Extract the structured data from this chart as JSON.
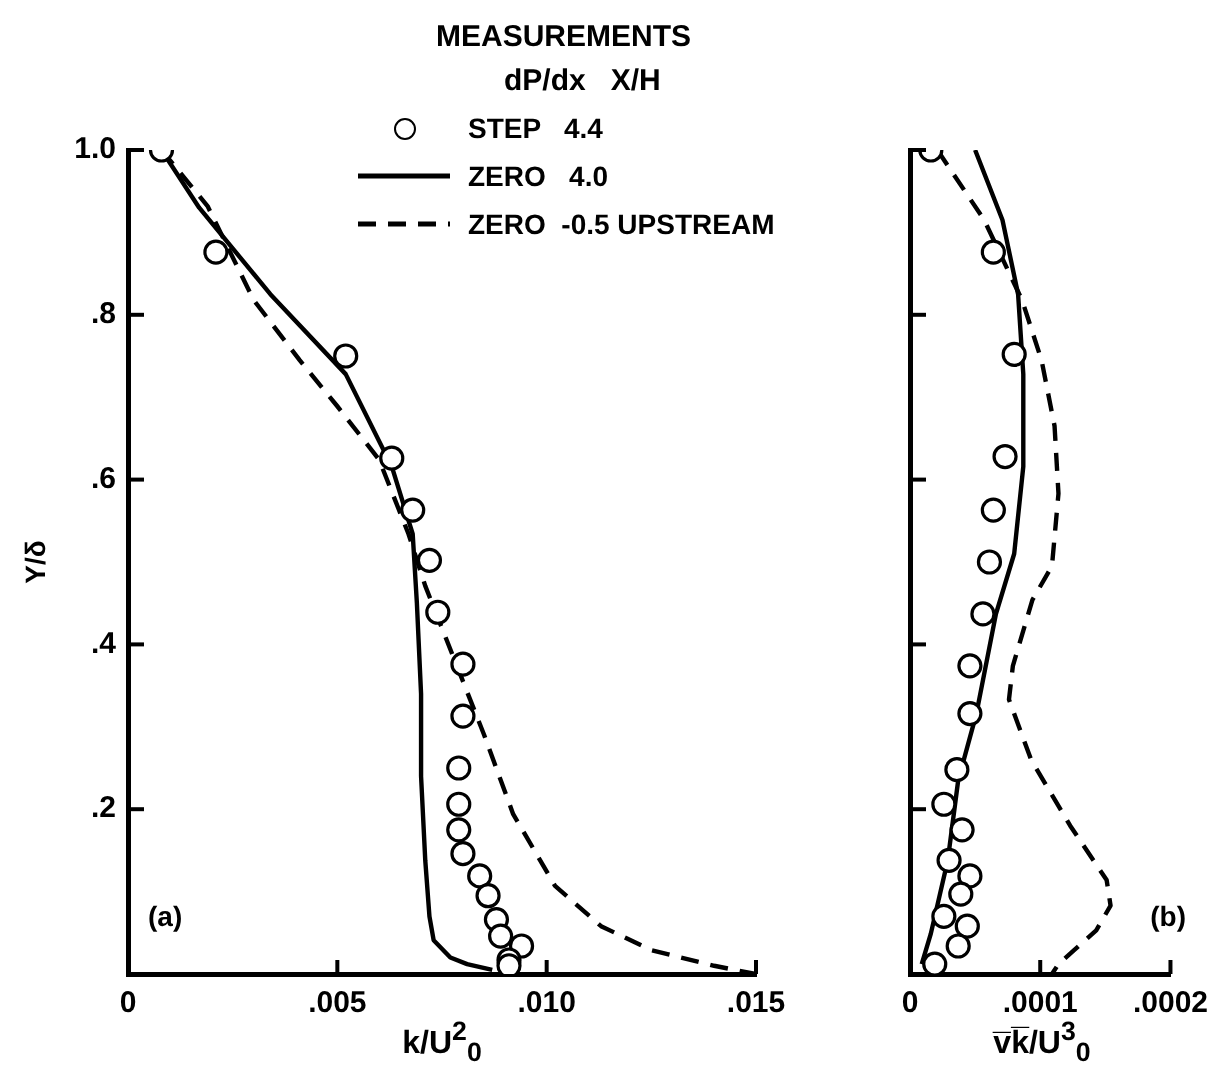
{
  "chart_data": [
    {
      "type": "line",
      "ylabel": "Y/δ",
      "xlabel": "k/U$^{2}$$_{0}$",
      "legend_title": "MEASUREMENTS\ndP/dx   X/H",
      "legend": "top right",
      "annotations": [
        "(a)"
      ],
      "xlim": [
        0,
        0.015
      ],
      "ylim": [
        0,
        1.0
      ],
      "xticks": [
        0,
        {
          "value": 0.005,
          "label": ".005"
        },
        {
          "value": 0.01,
          "label": ".010"
        },
        {
          "value": 0.015,
          "label": ".015"
        }
      ],
      "yticks": [
        {
          "value": 0.2,
          "label": ".2"
        },
        {
          "value": 0.4,
          "label": ".4"
        },
        {
          "value": 0.6,
          "label": ".6"
        },
        {
          "value": 0.8,
          "label": ".8"
        },
        {
          "value": 1.0,
          "label": "1.0"
        }
      ],
      "grid": false,
      "series": [
        {
          "name": "STEP   4.4",
          "type": "scatter",
          "marker": "circle",
          "color": "#000000",
          "x": [
            0.0008,
            0.0021,
            0.0052,
            0.0063,
            0.0068,
            0.0072,
            0.0074,
            0.008,
            0.008,
            0.0079,
            0.0079,
            0.0079,
            0.008,
            0.0084,
            0.0086,
            0.0088,
            0.0089,
            0.0094,
            0.0091,
            0.0091
          ],
          "values": [
            1.0,
            0.876,
            0.75,
            0.626,
            0.563,
            0.502,
            0.439,
            0.376,
            0.313,
            0.25,
            0.206,
            0.175,
            0.146,
            0.119,
            0.095,
            0.066,
            0.046,
            0.034,
            0.017,
            0.01
          ]
        },
        {
          "name": "ZERO   4.0",
          "type": "line",
          "line_style": "solid",
          "marker": "none",
          "color": "#000000",
          "x": [
            0.0008,
            0.0017,
            0.0034,
            0.0052,
            0.0063,
            0.0068,
            0.0069,
            0.007,
            0.007,
            0.0071,
            0.0072,
            0.0073,
            0.0077,
            0.0081,
            0.0087
          ],
          "values": [
            1.0,
            0.93,
            0.825,
            0.728,
            0.616,
            0.534,
            0.45,
            0.34,
            0.24,
            0.138,
            0.07,
            0.041,
            0.02,
            0.012,
            0.005
          ]
        },
        {
          "name": "ZERO  -0.5 UPSTREAM",
          "type": "line",
          "line_style": "dashed",
          "marker": "none",
          "color": "#000000",
          "x": [
            0.0008,
            0.0019,
            0.003,
            0.0041,
            0.005,
            0.006,
            0.0067,
            0.0071,
            0.0078,
            0.0085,
            0.0092,
            0.0102,
            0.0113,
            0.0125,
            0.014,
            0.015
          ],
          "values": [
            1.0,
            0.932,
            0.818,
            0.745,
            0.689,
            0.624,
            0.534,
            0.471,
            0.381,
            0.291,
            0.194,
            0.107,
            0.058,
            0.029,
            0.01,
            0.0
          ]
        }
      ]
    },
    {
      "type": "line",
      "xlabel": "v̅k̅/U$^{3}$$_{0}$",
      "annotations": [
        "(b)"
      ],
      "xlim": [
        0,
        0.0002
      ],
      "ylim": [
        0,
        1.0
      ],
      "xticks": [
        0,
        {
          "value": 0.0001,
          "label": ".0001"
        },
        {
          "value": 0.0002,
          "label": ".0002"
        }
      ],
      "yticks": [
        0.2,
        0.4,
        0.6,
        0.8,
        1.0
      ],
      "tick_labels": "x",
      "grid": false,
      "series": [
        {
          "type": "scatter",
          "marker": "circle",
          "color": "#000000",
          "x": [
            1.6e-05,
            6.4e-05,
            8e-05,
            7.3e-05,
            6.4e-05,
            6.1e-05,
            5.6e-05,
            4.6e-05,
            4.6e-05,
            3.6e-05,
            2.6e-05,
            4e-05,
            3e-05,
            4.6e-05,
            3.9e-05,
            2.6e-05,
            4.4e-05,
            3.7e-05,
            1.9e-05
          ],
          "values": [
            1.0,
            0.876,
            0.752,
            0.628,
            0.563,
            0.5,
            0.437,
            0.374,
            0.316,
            0.248,
            0.206,
            0.175,
            0.138,
            0.119,
            0.097,
            0.07,
            0.058,
            0.034,
            0.012
          ]
        },
        {
          "type": "line",
          "line_style": "solid",
          "marker": "none",
          "color": "#000000",
          "x": [
            5e-05,
            7.1e-05,
            8.3e-05,
            8.7e-05,
            8.7e-05,
            8e-05,
            6.6e-05,
            5.1e-05,
            3.7e-05,
            2.9e-05,
            1.6e-05,
            9e-06
          ],
          "values": [
            1.0,
            0.915,
            0.825,
            0.728,
            0.616,
            0.51,
            0.437,
            0.316,
            0.235,
            0.138,
            0.049,
            0.012
          ]
        },
        {
          "type": "line",
          "line_style": "dashed",
          "marker": "none",
          "color": "#000000",
          "x": [
            2.1e-05,
            5.7e-05,
            8.6e-05,
            0.000101,
            0.000111,
            0.000114,
            0.000109,
            9.4e-05,
            7.9e-05,
            7.6e-05,
            9.3e-05,
            0.000123,
            0.000151,
            0.000154,
            0.000143,
            0.000126,
            0.000114,
            0.000109
          ],
          "values": [
            1.0,
            0.915,
            0.818,
            0.745,
            0.665,
            0.583,
            0.495,
            0.454,
            0.374,
            0.333,
            0.26,
            0.18,
            0.114,
            0.083,
            0.053,
            0.029,
            0.012,
            0.0
          ]
        }
      ]
    }
  ]
}
